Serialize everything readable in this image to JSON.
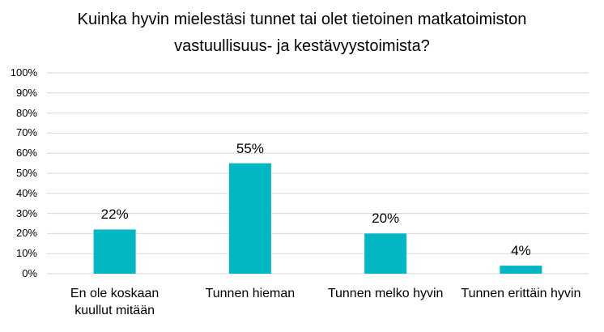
{
  "chart_data": {
    "type": "bar",
    "title": "Kuinka hyvin mielestäsi tunnet tai olet tietoinen matkatoimiston vastuullisuus- ja kestävyystoimista?",
    "categories": [
      "En ole koskaan kuullut mitään",
      "Tunnen hieman",
      "Tunnen melko hyvin",
      "Tunnen erittäin hyvin"
    ],
    "values": [
      22,
      55,
      20,
      4
    ],
    "value_labels": [
      "22%",
      "55%",
      "20%",
      "4%"
    ],
    "color": "#00b7c3",
    "ylim": [
      0,
      100
    ],
    "yticks": [
      {
        "value": 0,
        "label": "0%"
      },
      {
        "value": 10,
        "label": "10%"
      },
      {
        "value": 20,
        "label": "20%"
      },
      {
        "value": 30,
        "label": "30%"
      },
      {
        "value": 40,
        "label": "40%"
      },
      {
        "value": 50,
        "label": "50%"
      },
      {
        "value": 60,
        "label": "60%"
      },
      {
        "value": 70,
        "label": "70%"
      },
      {
        "value": 80,
        "label": "80%"
      },
      {
        "value": 90,
        "label": "90%"
      },
      {
        "value": 100,
        "label": "100%"
      }
    ],
    "grid": true
  }
}
